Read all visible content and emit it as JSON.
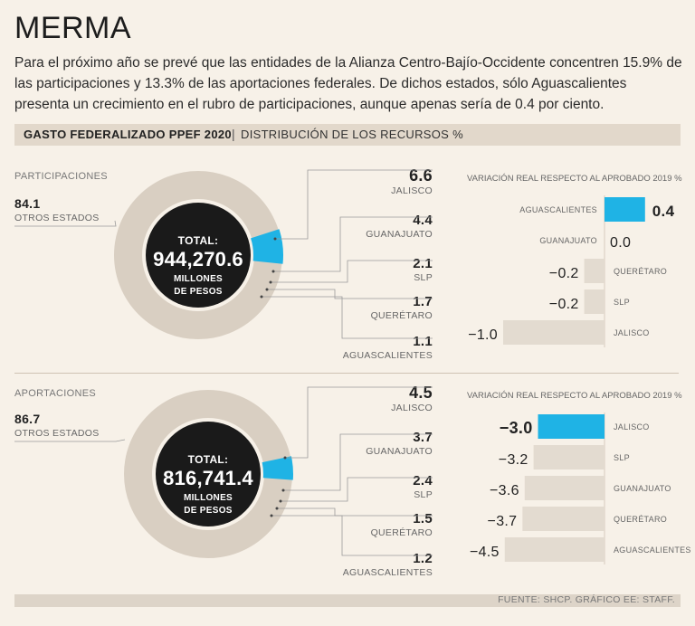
{
  "title": "MERMA",
  "intro": "Para el próximo año se prevé que las entidades de la Alianza Centro-Bajío-Occidente concentren 15.9% de las participaciones y 13.3% de las aportaciones federales. De dichos estados, sólo Aguascalientes presenta un crecimiento en el rubro de participaciones, aunque apenas sería de 0.4 por ciento.",
  "header": {
    "main": "GASTO FEDERALIZADO PPEF 2020",
    "sub": "DISTRIBUCIÓN DE LOS RECURSOS %"
  },
  "footer": "FUENTE: SHCP. GRÁFICO EE: STAFF.",
  "colors": {
    "accent": "#1fb3e5",
    "ring": "#d9cfc2",
    "center": "#1a1a1a",
    "bar": "#e3dbd0"
  },
  "chart_data": [
    {
      "type": "pie",
      "section": "PARTICIPACIONES",
      "total_label": "TOTAL:",
      "total_value": "944,270.6",
      "total_units": [
        "MILLONES",
        "DE PESOS"
      ],
      "others": {
        "value": "84.1",
        "label": "OTROS ESTADOS"
      },
      "slices": [
        {
          "value": "6.6",
          "label": "JALISCO"
        },
        {
          "value": "4.4",
          "label": "GUANAJUATO"
        },
        {
          "value": "2.1",
          "label": "SLP"
        },
        {
          "value": "1.7",
          "label": "QUERÉTARO"
        },
        {
          "value": "1.1",
          "label": "AGUASCALIENTES"
        }
      ]
    },
    {
      "type": "bar",
      "title": "VARIACIÓN REAL RESPECTO AL APROBADO 2019 %",
      "categories": [
        "AGUASCALIENTES",
        "GUANAJUATO",
        "QUERÉTARO",
        "SLP",
        "JALISCO"
      ],
      "values": [
        0.4,
        0.0,
        -0.2,
        -0.2,
        -1.0
      ],
      "labels": [
        "0.4",
        "0.0",
        "−0.2",
        "−0.2",
        "−1.0"
      ]
    },
    {
      "type": "pie",
      "section": "APORTACIONES",
      "total_label": "TOTAL:",
      "total_value": "816,741.4",
      "total_units": [
        "MILLONES",
        "DE PESOS"
      ],
      "others": {
        "value": "86.7",
        "label": "OTROS ESTADOS"
      },
      "slices": [
        {
          "value": "4.5",
          "label": "JALISCO"
        },
        {
          "value": "3.7",
          "label": "GUANAJUATO"
        },
        {
          "value": "2.4",
          "label": "SLP"
        },
        {
          "value": "1.5",
          "label": "QUERÉTARO"
        },
        {
          "value": "1.2",
          "label": "AGUASCALIENTES"
        }
      ]
    },
    {
      "type": "bar",
      "title": "VARIACIÓN REAL RESPECTO AL APROBADO 2019 %",
      "categories": [
        "JALISCO",
        "SLP",
        "GUANAJUATO",
        "QUERÉTARO",
        "AGUASCALIENTES"
      ],
      "values": [
        -3.0,
        -3.2,
        -3.6,
        -3.7,
        -4.5
      ],
      "labels": [
        "−3.0",
        "−3.2",
        "−3.6",
        "−3.7",
        "−4.5"
      ]
    }
  ]
}
